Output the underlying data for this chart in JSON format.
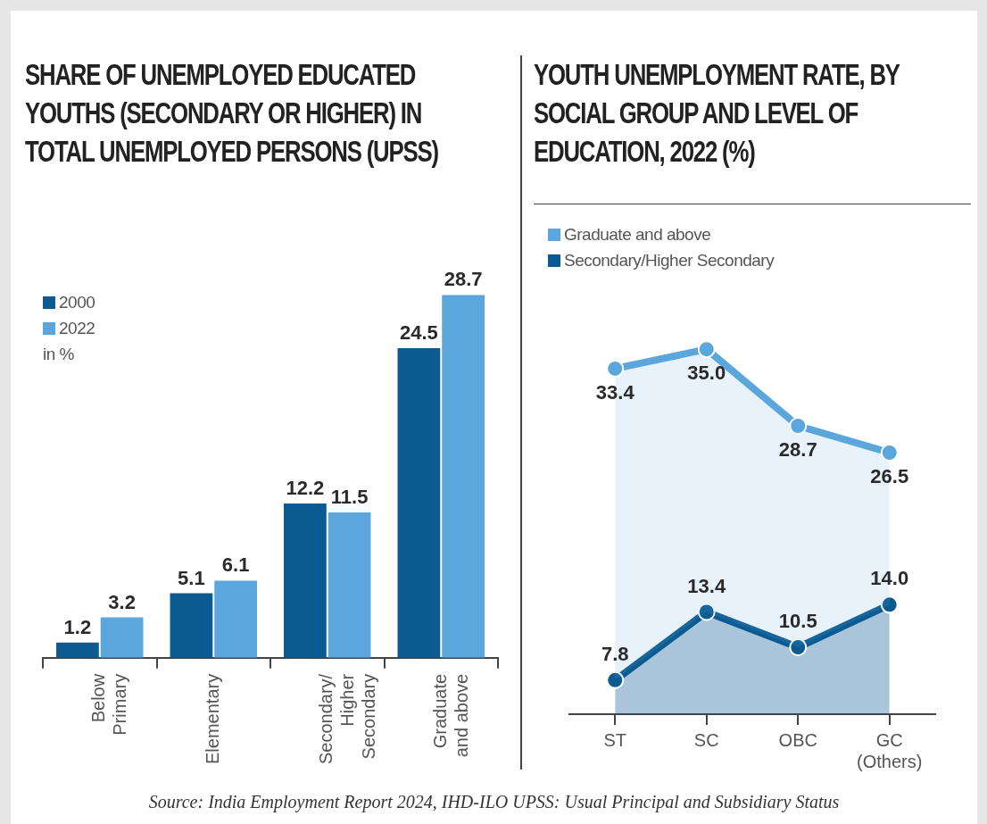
{
  "chart_data": [
    {
      "type": "bar",
      "title": "SHARE OF UNEMPLOYED EDUCATED YOUTHS (SECONDARY OR HIGHER) IN TOTAL UNEMPLOYED PERSONS (UPSS)",
      "ylabel": "in %",
      "categories": [
        "Below Primary",
        "Elementary",
        "Secondary/ Higher Secondary",
        "Graduate and above"
      ],
      "series": [
        {
          "name": "2000",
          "color": "#0b5a92",
          "values": [
            1.2,
            5.1,
            12.2,
            24.5
          ]
        },
        {
          "name": "2022",
          "color": "#5ba6dc",
          "values": [
            3.2,
            6.1,
            11.5,
            28.7
          ]
        }
      ],
      "data_labels": true,
      "legend": "top left",
      "tick_labels": "x",
      "annotations": [
        "Source: India Employment Report 2024, IHD-ILO UPSS: Usual Principal and Subsidiary Status"
      ]
    },
    {
      "type": "area",
      "title": "YOUTH UNEMPLOYMENT RATE, BY SOCIAL GROUP AND LEVEL OF EDUCATION, 2022 (%)",
      "categories": [
        "ST",
        "SC",
        "OBC",
        "GC (Others)"
      ],
      "series": [
        {
          "name": "Graduate and above",
          "color": "#5ba6dc",
          "values": [
            33.4,
            35.0,
            28.7,
            26.5
          ],
          "value_labels": [
            "33.4",
            "35.0",
            "28.7",
            "26.5"
          ]
        },
        {
          "name": "Secondary/Higher Secondary",
          "color": "#0b5a92",
          "values": [
            7.8,
            13.4,
            10.5,
            14.0
          ],
          "value_labels": [
            "7.8",
            "13.4",
            "10.5",
            "14.0"
          ]
        }
      ],
      "marker": "circle",
      "legend": "top left",
      "tick_labels": "x"
    }
  ]
}
